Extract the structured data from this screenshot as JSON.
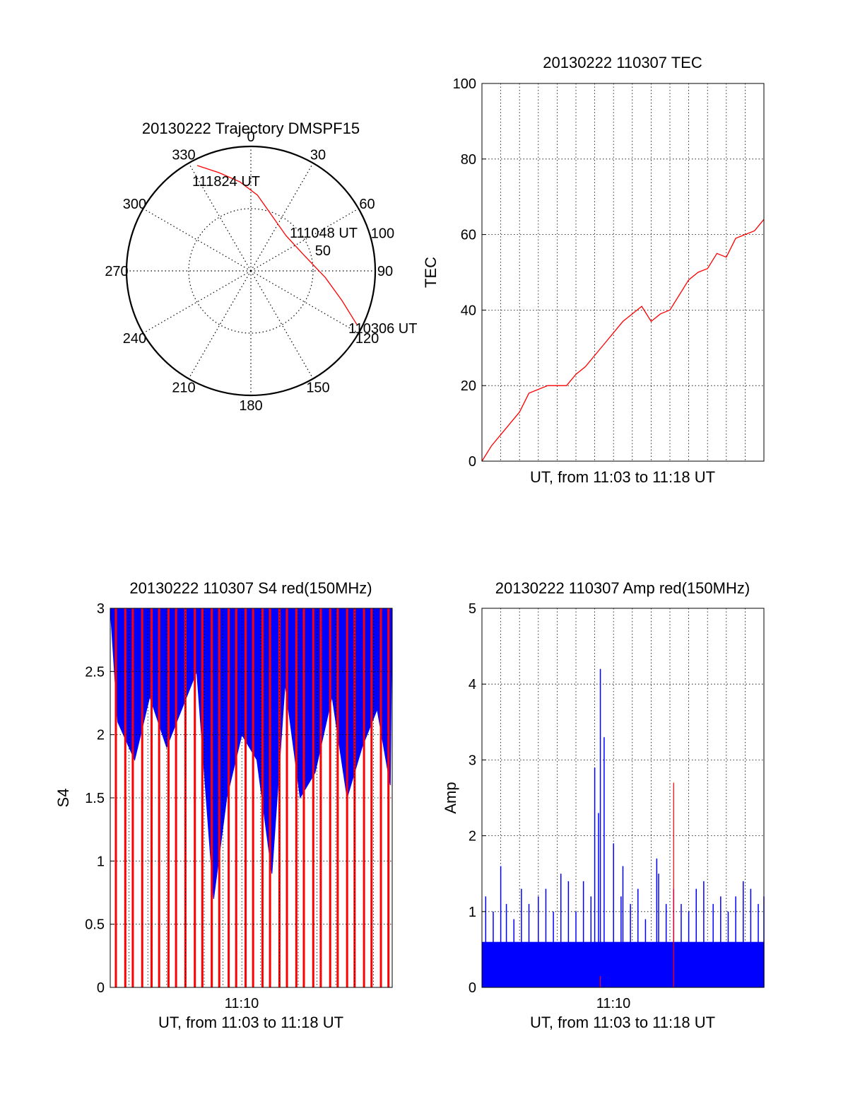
{
  "chart_data": [
    {
      "type": "polar",
      "title": "20130222 Trajectory DMSPF15",
      "azimuth_labels": [
        "0",
        "30",
        "60",
        "90",
        "120",
        "150",
        "180",
        "210",
        "240",
        "270",
        "300",
        "330"
      ],
      "radial_labels": [
        "50",
        "100"
      ],
      "radial_range": [
        0,
        100
      ],
      "grid": true,
      "trajectory": {
        "color": "#ff0000",
        "points": [
          {
            "az": 333,
            "r": 95
          },
          {
            "az": 342,
            "r": 83
          },
          {
            "az": 353,
            "r": 72
          },
          {
            "az": 5,
            "r": 61
          },
          {
            "az": 20,
            "r": 48
          },
          {
            "az": 45,
            "r": 40
          },
          {
            "az": 72,
            "r": 44
          },
          {
            "az": 95,
            "r": 60
          },
          {
            "az": 108,
            "r": 77
          },
          {
            "az": 117,
            "r": 96
          }
        ]
      },
      "annotations": [
        "111824 UT",
        "111048 UT",
        "110306 UT"
      ]
    },
    {
      "type": "line",
      "title": "20130222 110307 TEC",
      "xlabel": "UT, from 11:03 to 11:18 UT",
      "ylabel": "TEC",
      "xlim": [
        0,
        15
      ],
      "ylim": [
        0,
        100
      ],
      "yticks": [
        "0",
        "20",
        "40",
        "60",
        "80",
        "100"
      ],
      "grid": true,
      "series": [
        {
          "color": "#ff0000",
          "x": [
            0,
            0.5,
            1,
            1.5,
            2,
            2.5,
            3,
            3.5,
            4,
            4.5,
            5,
            5.5,
            6,
            6.5,
            7,
            7.5,
            8,
            8.5,
            9,
            9.5,
            10,
            10.5,
            11,
            11.5,
            12,
            12.5,
            13,
            13.5,
            14,
            14.5,
            15
          ],
          "y": [
            0,
            4,
            7,
            10,
            13,
            18,
            19,
            20,
            20,
            20,
            23,
            25,
            28,
            31,
            34,
            37,
            39,
            41,
            37,
            39,
            40,
            44,
            48,
            50,
            51,
            55,
            54,
            59,
            60,
            61,
            64
          ]
        }
      ]
    },
    {
      "type": "bar",
      "title": "20130222 110307 S4 red(150MHz)",
      "xlabel": "UT, from 11:03 to 11:18 UT",
      "ylabel": "S4",
      "xlim": [
        0,
        15
      ],
      "ylim": [
        0,
        3
      ],
      "xticks": [
        "11:10"
      ],
      "yticks": [
        "0",
        "0.5",
        "1",
        "1.5",
        "2",
        "2.5",
        "3"
      ],
      "grid": true,
      "series": [
        {
          "color": "#0000ff",
          "x": [
            0.4,
            1.3,
            2.1,
            3.0,
            3.8,
            4.6,
            5.5,
            6.2,
            7.0,
            7.8,
            8.6,
            9.3,
            10.1,
            10.9,
            11.8,
            12.6,
            13.4,
            14.2,
            14.9
          ],
          "y": [
            2.1,
            1.8,
            2.3,
            1.9,
            2.2,
            2.5,
            0.7,
            1.5,
            2.0,
            1.8,
            0.9,
            2.4,
            1.5,
            1.7,
            2.3,
            1.5,
            1.9,
            2.2,
            1.6
          ]
        },
        {
          "color": "#ff0000",
          "x": [
            0.3,
            0.8,
            1.2,
            1.7,
            2.2,
            2.6,
            3.1,
            3.5,
            4.0,
            4.5,
            4.9,
            5.4,
            5.8,
            6.3,
            6.7,
            7.2,
            7.6,
            8.1,
            8.5,
            9.0,
            9.4,
            9.9,
            10.3,
            10.8,
            11.2,
            11.7,
            12.1,
            12.6,
            13.0,
            13.5,
            13.9,
            14.4,
            14.8
          ],
          "y": [
            3,
            3,
            3,
            3,
            3,
            3,
            3,
            3,
            3,
            3,
            3,
            3,
            3,
            3,
            3,
            3,
            3,
            3,
            3,
            3,
            3,
            3,
            3,
            3,
            3,
            3,
            3,
            3,
            3,
            3,
            3,
            3,
            3
          ]
        }
      ]
    },
    {
      "type": "bar",
      "title": "20130222 110307 Amp red(150MHz)",
      "xlabel": "UT, from 11:03 to 11:18 UT",
      "ylabel": "Amp",
      "xlim": [
        0,
        15
      ],
      "ylim": [
        0,
        5
      ],
      "xticks": [
        "11:10"
      ],
      "yticks": [
        "0",
        "1",
        "2",
        "3",
        "4",
        "5"
      ],
      "grid": true,
      "series": [
        {
          "color": "#0000ff",
          "x": [
            0.2,
            0.6,
            1.0,
            1.3,
            1.7,
            2.1,
            2.5,
            3.0,
            3.4,
            3.8,
            4.2,
            4.6,
            5.0,
            5.4,
            5.8,
            6.0,
            6.2,
            6.3,
            6.5,
            7.0,
            7.4,
            7.5,
            7.9,
            8.3,
            8.7,
            9.3,
            9.4,
            9.8,
            10.2,
            10.6,
            11.0,
            11.4,
            11.8,
            12.3,
            12.7,
            13.1,
            13.5,
            13.9,
            14.3,
            14.7,
            15.0
          ],
          "y": [
            1.2,
            1.0,
            1.6,
            1.1,
            0.9,
            1.3,
            1.1,
            1.2,
            1.3,
            1.0,
            1.5,
            1.4,
            1.0,
            1.4,
            1.2,
            2.9,
            2.3,
            4.2,
            3.3,
            1.9,
            1.2,
            1.6,
            1.1,
            1.3,
            0.9,
            1.7,
            1.5,
            1.1,
            1.3,
            1.1,
            1.0,
            1.3,
            1.4,
            1.1,
            1.2,
            1.0,
            1.2,
            1.4,
            1.3,
            1.1,
            1.2
          ]
        },
        {
          "color": "#ff0000",
          "x": [
            6.3,
            10.2
          ],
          "y": [
            0.15,
            2.7
          ]
        }
      ]
    }
  ]
}
